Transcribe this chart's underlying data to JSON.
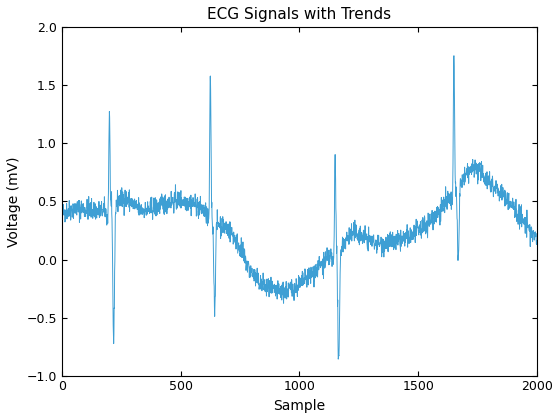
{
  "title": "ECG Signals with Trends",
  "xlabel": "Sample",
  "ylabel": "Voltage (mV)",
  "xlim": [
    0,
    2000
  ],
  "ylim": [
    -1,
    2
  ],
  "yticks": [
    -1,
    -0.5,
    0,
    0.5,
    1,
    1.5,
    2
  ],
  "xticks": [
    0,
    500,
    1000,
    1500,
    2000
  ],
  "line_color": "#3E9FD4",
  "line_width": 0.7,
  "background_color": "#ffffff",
  "seed": 42,
  "n_samples": 2000,
  "title_fontsize": 11,
  "label_fontsize": 10,
  "qrs_centers": [
    200,
    625,
    1150,
    1650
  ],
  "qrs_amplitudes": [
    1.25,
    1.55,
    1.05,
    1.15
  ],
  "s_centers": [
    218,
    643,
    1165,
    1668
  ],
  "s_amplitudes": [
    0.75,
    0.45,
    0.9,
    0.62
  ]
}
